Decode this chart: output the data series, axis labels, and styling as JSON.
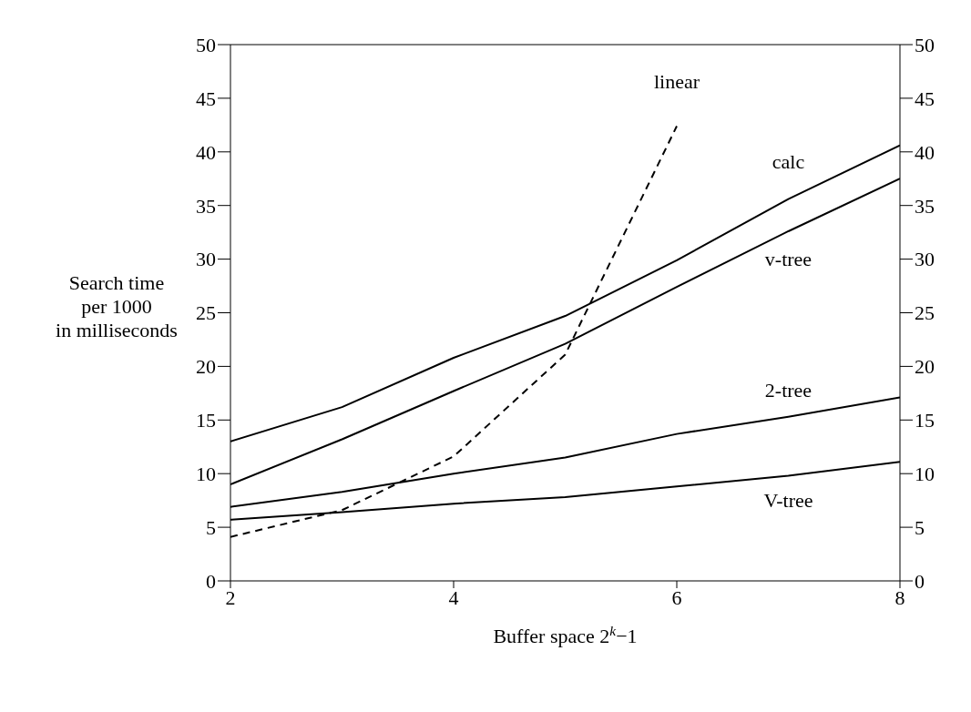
{
  "chart_data": {
    "type": "line",
    "xlabel": "Buffer space 2$^{k}$−1",
    "ylabel": "Search time\nper 1000\nin milliseconds",
    "x": [
      2,
      3,
      4,
      5,
      6,
      7,
      8
    ],
    "series": [
      {
        "name": "calc",
        "color": "#000000",
        "line_style": "solid",
        "values": [
          13,
          16.2,
          20.8,
          24.7,
          29.9,
          35.6,
          40.6
        ]
      },
      {
        "name": "v-tree",
        "color": "#000000",
        "line_style": "solid",
        "values": [
          9,
          13.2,
          17.7,
          22.1,
          27.4,
          32.6,
          37.5
        ]
      },
      {
        "name": "2-tree",
        "color": "#000000",
        "line_style": "solid",
        "values": [
          6.9,
          8.3,
          10,
          11.5,
          13.7,
          15.3,
          17.1
        ]
      },
      {
        "name": "V-tree",
        "color": "#000000",
        "line_style": "solid",
        "values": [
          5.7,
          6.4,
          7.2,
          7.8,
          8.8,
          9.8,
          11.1
        ]
      },
      {
        "name": "linear",
        "color": "#000000",
        "line_style": "dashed",
        "values": [
          4.1,
          6.6,
          11.6,
          21.1,
          42.4,
          null,
          null
        ]
      }
    ],
    "xlim": [
      2,
      8
    ],
    "xticks": [
      2,
      4,
      6,
      8
    ],
    "ylim": [
      0,
      50
    ],
    "yticks": [
      0,
      5,
      10,
      15,
      20,
      25,
      30,
      35,
      40,
      45,
      50
    ],
    "y2lim": [
      0,
      50
    ],
    "y2ticks": [
      0,
      5,
      10,
      15,
      20,
      25,
      30,
      35,
      40,
      45,
      50
    ],
    "grid": false,
    "legend": false,
    "marker": "none"
  }
}
